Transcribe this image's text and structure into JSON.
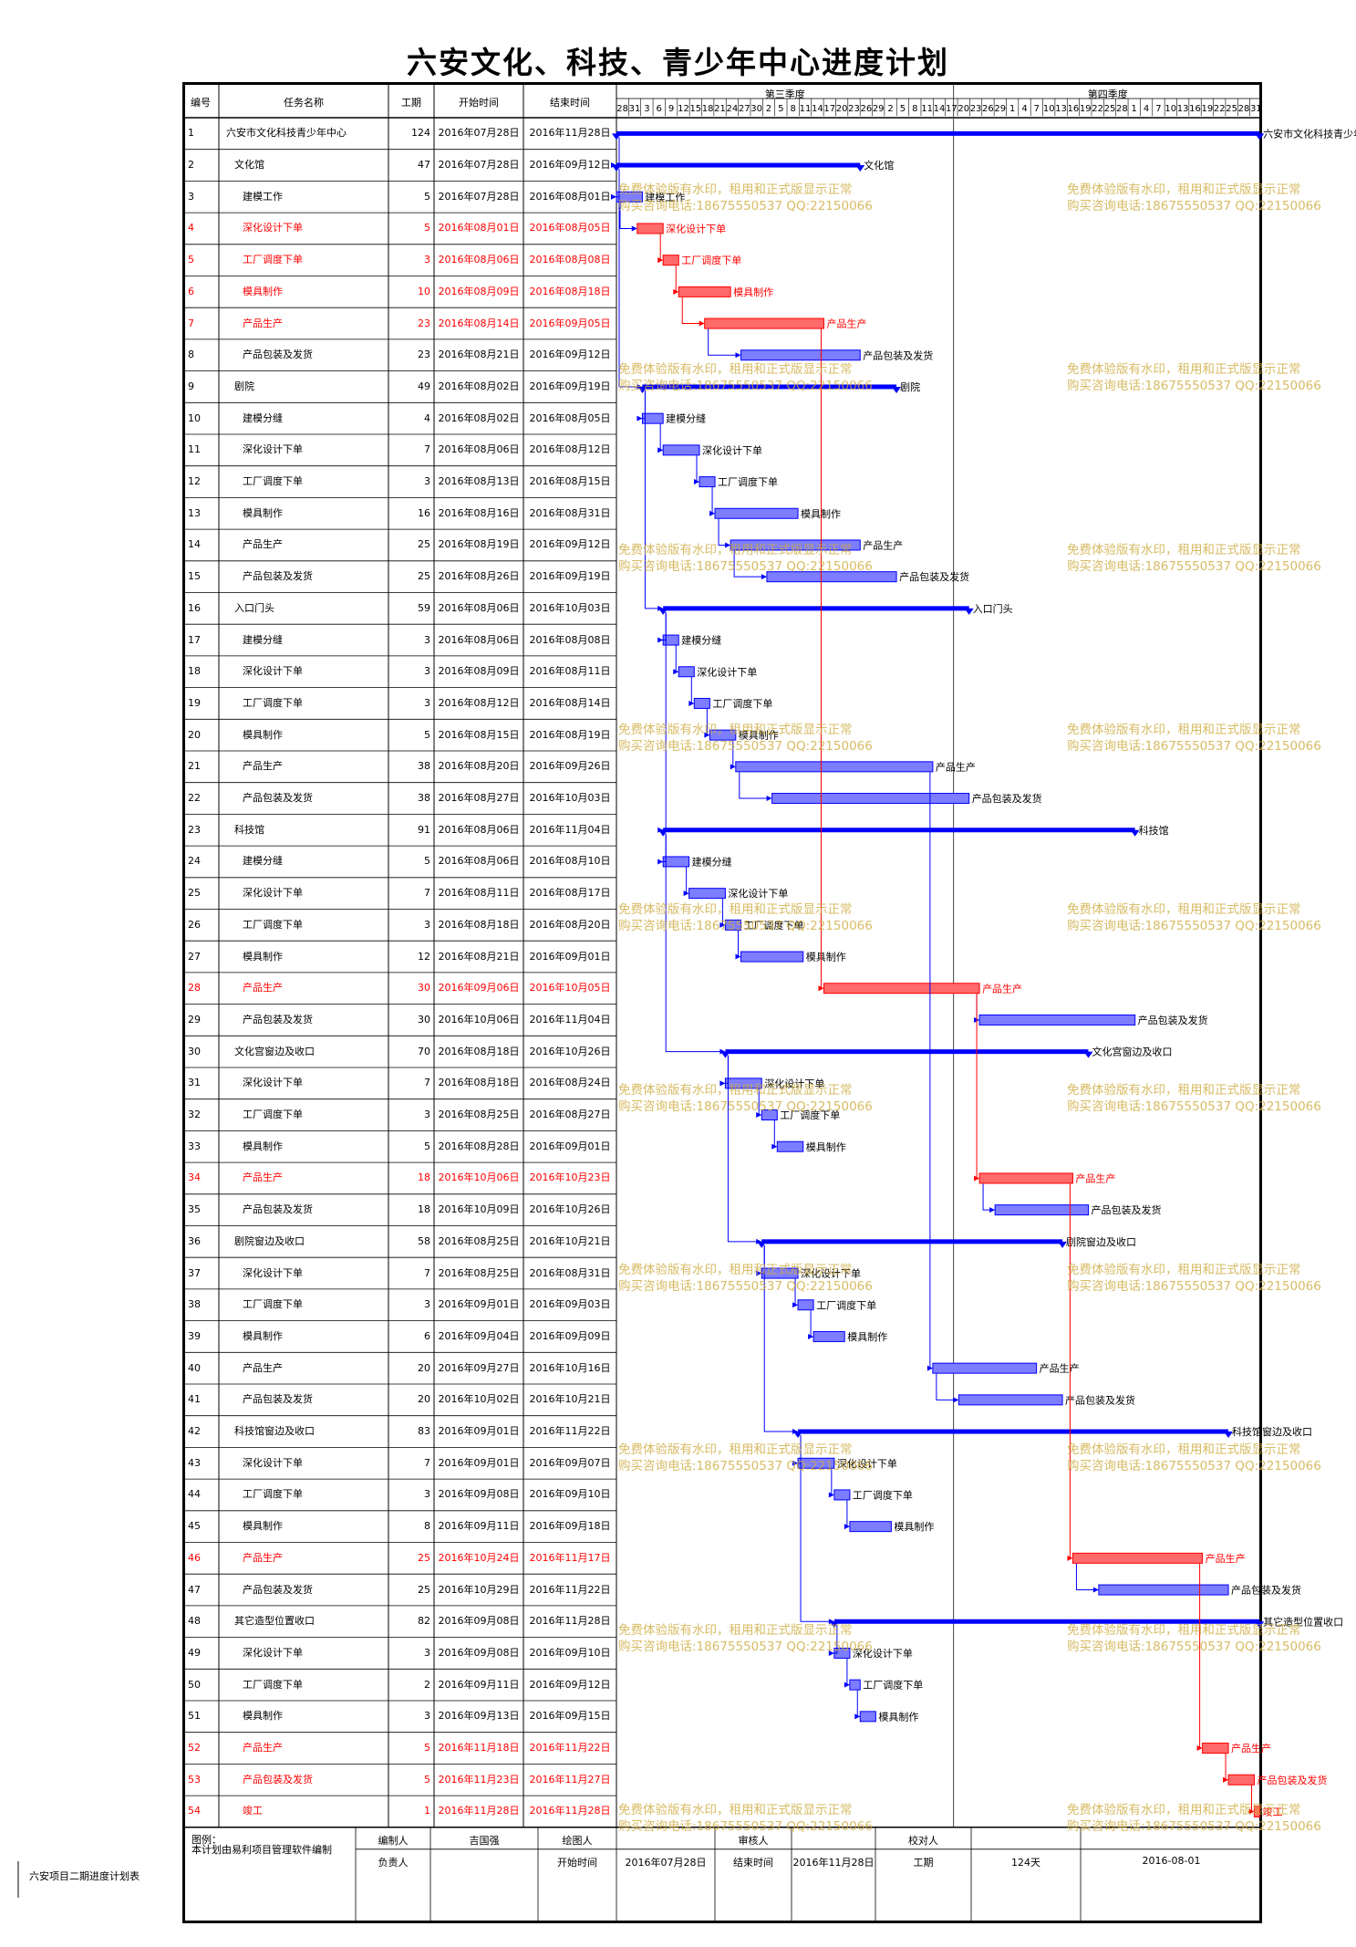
{
  "title": "六安文化、科技、青少年中心进度计划",
  "headers": {
    "id": "编号",
    "name": "任务名称",
    "dur": "工期",
    "start": "开始时间",
    "end": "结束时间",
    "q3": "第三季度",
    "q4": "第四季度"
  },
  "ticks": [
    "28",
    "31",
    "3",
    "6",
    "9",
    "12",
    "15",
    "18",
    "21",
    "24",
    "27",
    "30",
    "2",
    "5",
    "8",
    "11",
    "14",
    "17",
    "20",
    "23",
    "26",
    "29",
    "2",
    "5",
    "8",
    "11",
    "14",
    "17",
    "20",
    "23",
    "26",
    "29",
    "1",
    "4",
    "7",
    "10",
    "13",
    "16",
    "19",
    "22",
    "25",
    "28",
    "1",
    "4",
    "7",
    "10",
    "13",
    "16",
    "19",
    "22",
    "25",
    "28",
    "31"
  ],
  "colors": {
    "blue": "#0000ff",
    "red": "#ff0000",
    "task": "#7d7dff",
    "task_red": "#ff6a6a"
  },
  "chart_data": {
    "type": "gantt",
    "tasks": [
      {
        "id": "1",
        "name": "六安市文化科技青少年中心",
        "dur": "124",
        "start": "2016年07月28日",
        "end": "2016年11月28日",
        "s": 0,
        "e": 123,
        "lvl": 0,
        "sum": true,
        "crit": false,
        "label": "六安市文化科技青少年中心"
      },
      {
        "id": "2",
        "name": "文化馆",
        "dur": "47",
        "start": "2016年07月28日",
        "end": "2016年09月12日",
        "s": 0,
        "e": 46,
        "lvl": 1,
        "sum": true,
        "crit": false,
        "label": "文化馆"
      },
      {
        "id": "3",
        "name": "建模工作",
        "dur": "5",
        "start": "2016年07月28日",
        "end": "2016年08月01日",
        "s": 0,
        "e": 4,
        "lvl": 2,
        "sum": false,
        "crit": false,
        "label": "建模工作"
      },
      {
        "id": "4",
        "name": "深化设计下单",
        "dur": "5",
        "start": "2016年08月01日",
        "end": "2016年08月05日",
        "s": 4,
        "e": 8,
        "lvl": 2,
        "sum": false,
        "crit": true,
        "label": "深化设计下单"
      },
      {
        "id": "5",
        "name": "工厂调度下单",
        "dur": "3",
        "start": "2016年08月06日",
        "end": "2016年08月08日",
        "s": 9,
        "e": 11,
        "lvl": 2,
        "sum": false,
        "crit": true,
        "label": "工厂调度下单"
      },
      {
        "id": "6",
        "name": "模具制作",
        "dur": "10",
        "start": "2016年08月09日",
        "end": "2016年08月18日",
        "s": 12,
        "e": 21,
        "lvl": 2,
        "sum": false,
        "crit": true,
        "label": "模具制作"
      },
      {
        "id": "7",
        "name": "产品生产",
        "dur": "23",
        "start": "2016年08月14日",
        "end": "2016年09月05日",
        "s": 17,
        "e": 39,
        "lvl": 2,
        "sum": false,
        "crit": true,
        "label": "产品生产"
      },
      {
        "id": "8",
        "name": "产品包装及发货",
        "dur": "23",
        "start": "2016年08月21日",
        "end": "2016年09月12日",
        "s": 24,
        "e": 46,
        "lvl": 2,
        "sum": false,
        "crit": false,
        "label": "产品包装及发货"
      },
      {
        "id": "9",
        "name": "剧院",
        "dur": "49",
        "start": "2016年08月02日",
        "end": "2016年09月19日",
        "s": 5,
        "e": 53,
        "lvl": 1,
        "sum": true,
        "crit": false,
        "label": "剧院"
      },
      {
        "id": "10",
        "name": "建模分缝",
        "dur": "4",
        "start": "2016年08月02日",
        "end": "2016年08月05日",
        "s": 5,
        "e": 8,
        "lvl": 2,
        "sum": false,
        "crit": false,
        "label": "建模分缝"
      },
      {
        "id": "11",
        "name": "深化设计下单",
        "dur": "7",
        "start": "2016年08月06日",
        "end": "2016年08月12日",
        "s": 9,
        "e": 15,
        "lvl": 2,
        "sum": false,
        "crit": false,
        "label": "深化设计下单"
      },
      {
        "id": "12",
        "name": "工厂调度下单",
        "dur": "3",
        "start": "2016年08月13日",
        "end": "2016年08月15日",
        "s": 16,
        "e": 18,
        "lvl": 2,
        "sum": false,
        "crit": false,
        "label": "工厂调度下单"
      },
      {
        "id": "13",
        "name": "模具制作",
        "dur": "16",
        "start": "2016年08月16日",
        "end": "2016年08月31日",
        "s": 19,
        "e": 34,
        "lvl": 2,
        "sum": false,
        "crit": false,
        "label": "模具制作"
      },
      {
        "id": "14",
        "name": "产品生产",
        "dur": "25",
        "start": "2016年08月19日",
        "end": "2016年09月12日",
        "s": 22,
        "e": 46,
        "lvl": 2,
        "sum": false,
        "crit": false,
        "label": "产品生产"
      },
      {
        "id": "15",
        "name": "产品包装及发货",
        "dur": "25",
        "start": "2016年08月26日",
        "end": "2016年09月19日",
        "s": 29,
        "e": 53,
        "lvl": 2,
        "sum": false,
        "crit": false,
        "label": "产品包装及发货"
      },
      {
        "id": "16",
        "name": "入口门头",
        "dur": "59",
        "start": "2016年08月06日",
        "end": "2016年10月03日",
        "s": 9,
        "e": 67,
        "lvl": 1,
        "sum": true,
        "crit": false,
        "label": "入口门头"
      },
      {
        "id": "17",
        "name": "建模分缝",
        "dur": "3",
        "start": "2016年08月06日",
        "end": "2016年08月08日",
        "s": 9,
        "e": 11,
        "lvl": 2,
        "sum": false,
        "crit": false,
        "label": "建模分缝"
      },
      {
        "id": "18",
        "name": "深化设计下单",
        "dur": "3",
        "start": "2016年08月09日",
        "end": "2016年08月11日",
        "s": 12,
        "e": 14,
        "lvl": 2,
        "sum": false,
        "crit": false,
        "label": "深化设计下单"
      },
      {
        "id": "19",
        "name": "工厂调度下单",
        "dur": "3",
        "start": "2016年08月12日",
        "end": "2016年08月14日",
        "s": 15,
        "e": 17,
        "lvl": 2,
        "sum": false,
        "crit": false,
        "label": "工厂调度下单"
      },
      {
        "id": "20",
        "name": "模具制作",
        "dur": "5",
        "start": "2016年08月15日",
        "end": "2016年08月19日",
        "s": 18,
        "e": 22,
        "lvl": 2,
        "sum": false,
        "crit": false,
        "label": "模具制作"
      },
      {
        "id": "21",
        "name": "产品生产",
        "dur": "38",
        "start": "2016年08月20日",
        "end": "2016年09月26日",
        "s": 23,
        "e": 60,
        "lvl": 2,
        "sum": false,
        "crit": false,
        "label": "产品生产"
      },
      {
        "id": "22",
        "name": "产品包装及发货",
        "dur": "38",
        "start": "2016年08月27日",
        "end": "2016年10月03日",
        "s": 30,
        "e": 67,
        "lvl": 2,
        "sum": false,
        "crit": false,
        "label": "产品包装及发货"
      },
      {
        "id": "23",
        "name": "科技馆",
        "dur": "91",
        "start": "2016年08月06日",
        "end": "2016年11月04日",
        "s": 9,
        "e": 99,
        "lvl": 1,
        "sum": true,
        "crit": false,
        "label": "科技馆"
      },
      {
        "id": "24",
        "name": "建模分缝",
        "dur": "5",
        "start": "2016年08月06日",
        "end": "2016年08月10日",
        "s": 9,
        "e": 13,
        "lvl": 2,
        "sum": false,
        "crit": false,
        "label": "建模分缝"
      },
      {
        "id": "25",
        "name": "深化设计下单",
        "dur": "7",
        "start": "2016年08月11日",
        "end": "2016年08月17日",
        "s": 14,
        "e": 20,
        "lvl": 2,
        "sum": false,
        "crit": false,
        "label": "深化设计下单"
      },
      {
        "id": "26",
        "name": "工厂调度下单",
        "dur": "3",
        "start": "2016年08月18日",
        "end": "2016年08月20日",
        "s": 21,
        "e": 23,
        "lvl": 2,
        "sum": false,
        "crit": false,
        "label": "工厂调度下单"
      },
      {
        "id": "27",
        "name": "模具制作",
        "dur": "12",
        "start": "2016年08月21日",
        "end": "2016年09月01日",
        "s": 24,
        "e": 35,
        "lvl": 2,
        "sum": false,
        "crit": false,
        "label": "模具制作"
      },
      {
        "id": "28",
        "name": "产品生产",
        "dur": "30",
        "start": "2016年09月06日",
        "end": "2016年10月05日",
        "s": 40,
        "e": 69,
        "lvl": 2,
        "sum": false,
        "crit": true,
        "label": "产品生产"
      },
      {
        "id": "29",
        "name": "产品包装及发货",
        "dur": "30",
        "start": "2016年10月06日",
        "end": "2016年11月04日",
        "s": 70,
        "e": 99,
        "lvl": 2,
        "sum": false,
        "crit": false,
        "label": "产品包装及发货"
      },
      {
        "id": "30",
        "name": "文化宫窗边及收口",
        "dur": "70",
        "start": "2016年08月18日",
        "end": "2016年10月26日",
        "s": 21,
        "e": 90,
        "lvl": 1,
        "sum": true,
        "crit": false,
        "label": "文化宫窗边及收口"
      },
      {
        "id": "31",
        "name": "深化设计下单",
        "dur": "7",
        "start": "2016年08月18日",
        "end": "2016年08月24日",
        "s": 21,
        "e": 27,
        "lvl": 2,
        "sum": false,
        "crit": false,
        "label": "深化设计下单"
      },
      {
        "id": "32",
        "name": "工厂调度下单",
        "dur": "3",
        "start": "2016年08月25日",
        "end": "2016年08月27日",
        "s": 28,
        "e": 30,
        "lvl": 2,
        "sum": false,
        "crit": false,
        "label": "工厂调度下单"
      },
      {
        "id": "33",
        "name": "模具制作",
        "dur": "5",
        "start": "2016年08月28日",
        "end": "2016年09月01日",
        "s": 31,
        "e": 35,
        "lvl": 2,
        "sum": false,
        "crit": false,
        "label": "模具制作"
      },
      {
        "id": "34",
        "name": "产品生产",
        "dur": "18",
        "start": "2016年10月06日",
        "end": "2016年10月23日",
        "s": 70,
        "e": 87,
        "lvl": 2,
        "sum": false,
        "crit": true,
        "label": "产品生产"
      },
      {
        "id": "35",
        "name": "产品包装及发货",
        "dur": "18",
        "start": "2016年10月09日",
        "end": "2016年10月26日",
        "s": 73,
        "e": 90,
        "lvl": 2,
        "sum": false,
        "crit": false,
        "label": "产品包装及发货"
      },
      {
        "id": "36",
        "name": "剧院窗边及收口",
        "dur": "58",
        "start": "2016年08月25日",
        "end": "2016年10月21日",
        "s": 28,
        "e": 85,
        "lvl": 1,
        "sum": true,
        "crit": false,
        "label": "剧院窗边及收口"
      },
      {
        "id": "37",
        "name": "深化设计下单",
        "dur": "7",
        "start": "2016年08月25日",
        "end": "2016年08月31日",
        "s": 28,
        "e": 34,
        "lvl": 2,
        "sum": false,
        "crit": false,
        "label": "深化设计下单"
      },
      {
        "id": "38",
        "name": "工厂调度下单",
        "dur": "3",
        "start": "2016年09月01日",
        "end": "2016年09月03日",
        "s": 35,
        "e": 37,
        "lvl": 2,
        "sum": false,
        "crit": false,
        "label": "工厂调度下单"
      },
      {
        "id": "39",
        "name": "模具制作",
        "dur": "6",
        "start": "2016年09月04日",
        "end": "2016年09月09日",
        "s": 38,
        "e": 43,
        "lvl": 2,
        "sum": false,
        "crit": false,
        "label": "模具制作"
      },
      {
        "id": "40",
        "name": "产品生产",
        "dur": "20",
        "start": "2016年09月27日",
        "end": "2016年10月16日",
        "s": 61,
        "e": 80,
        "lvl": 2,
        "sum": false,
        "crit": false,
        "label": "产品生产"
      },
      {
        "id": "41",
        "name": "产品包装及发货",
        "dur": "20",
        "start": "2016年10月02日",
        "end": "2016年10月21日",
        "s": 66,
        "e": 85,
        "lvl": 2,
        "sum": false,
        "crit": false,
        "label": "产品包装及发货"
      },
      {
        "id": "42",
        "name": "科技馆窗边及收口",
        "dur": "83",
        "start": "2016年09月01日",
        "end": "2016年11月22日",
        "s": 35,
        "e": 117,
        "lvl": 1,
        "sum": true,
        "crit": false,
        "label": "科技馆窗边及收口"
      },
      {
        "id": "43",
        "name": "深化设计下单",
        "dur": "7",
        "start": "2016年09月01日",
        "end": "2016年09月07日",
        "s": 35,
        "e": 41,
        "lvl": 2,
        "sum": false,
        "crit": false,
        "label": "深化设计下单"
      },
      {
        "id": "44",
        "name": "工厂调度下单",
        "dur": "3",
        "start": "2016年09月08日",
        "end": "2016年09月10日",
        "s": 42,
        "e": 44,
        "lvl": 2,
        "sum": false,
        "crit": false,
        "label": "工厂调度下单"
      },
      {
        "id": "45",
        "name": "模具制作",
        "dur": "8",
        "start": "2016年09月11日",
        "end": "2016年09月18日",
        "s": 45,
        "e": 52,
        "lvl": 2,
        "sum": false,
        "crit": false,
        "label": "模具制作"
      },
      {
        "id": "46",
        "name": "产品生产",
        "dur": "25",
        "start": "2016年10月24日",
        "end": "2016年11月17日",
        "s": 88,
        "e": 112,
        "lvl": 2,
        "sum": false,
        "crit": true,
        "label": "产品生产"
      },
      {
        "id": "47",
        "name": "产品包装及发货",
        "dur": "25",
        "start": "2016年10月29日",
        "end": "2016年11月22日",
        "s": 93,
        "e": 117,
        "lvl": 2,
        "sum": false,
        "crit": false,
        "label": "产品包装及发货"
      },
      {
        "id": "48",
        "name": "其它造型位置收口",
        "dur": "82",
        "start": "2016年09月08日",
        "end": "2016年11月28日",
        "s": 42,
        "e": 123,
        "lvl": 1,
        "sum": true,
        "crit": false,
        "label": "其它造型位置收口"
      },
      {
        "id": "49",
        "name": "深化设计下单",
        "dur": "3",
        "start": "2016年09月08日",
        "end": "2016年09月10日",
        "s": 42,
        "e": 44,
        "lvl": 2,
        "sum": false,
        "crit": false,
        "label": "深化设计下单"
      },
      {
        "id": "50",
        "name": "工厂调度下单",
        "dur": "2",
        "start": "2016年09月11日",
        "end": "2016年09月12日",
        "s": 45,
        "e": 46,
        "lvl": 2,
        "sum": false,
        "crit": false,
        "label": "工厂调度下单"
      },
      {
        "id": "51",
        "name": "模具制作",
        "dur": "3",
        "start": "2016年09月13日",
        "end": "2016年09月15日",
        "s": 47,
        "e": 49,
        "lvl": 2,
        "sum": false,
        "crit": false,
        "label": "模具制作"
      },
      {
        "id": "52",
        "name": "产品生产",
        "dur": "5",
        "start": "2016年11月18日",
        "end": "2016年11月22日",
        "s": 113,
        "e": 117,
        "lvl": 2,
        "sum": false,
        "crit": true,
        "label": "产品生产"
      },
      {
        "id": "53",
        "name": "产品包装及发货",
        "dur": "5",
        "start": "2016年11月23日",
        "end": "2016年11月27日",
        "s": 118,
        "e": 122,
        "lvl": 2,
        "sum": false,
        "crit": true,
        "label": "产品包装及发货"
      },
      {
        "id": "54",
        "name": "竣工",
        "dur": "1",
        "start": "2016年11月28日",
        "end": "2016年11月28日",
        "s": 123,
        "e": 123,
        "lvl": 2,
        "sum": false,
        "crit": true,
        "label": "竣工"
      }
    ]
  },
  "watermark": {
    "line1": "免费体验版有水印，租用和正式版显示正常",
    "line2": "购买咨询电话:18675550537 QQ:22150066"
  },
  "footer": {
    "legend": "图例：",
    "note": "本计划由易利项目管理软件编制",
    "editor_label": "编制人",
    "editor": "吉国强",
    "drawer_label": "绘图人",
    "reviewer_label": "审核人",
    "checker_label": "校对人",
    "owner_label": "负责人",
    "start_label": "开始时间",
    "start": "2016年07月28日",
    "end_label": "结束时间",
    "end": "2016年11月28日",
    "dur_label": "工期",
    "dur": "124天",
    "date": "2016-08-01"
  },
  "side_label": "六安项目二期进度计划表"
}
